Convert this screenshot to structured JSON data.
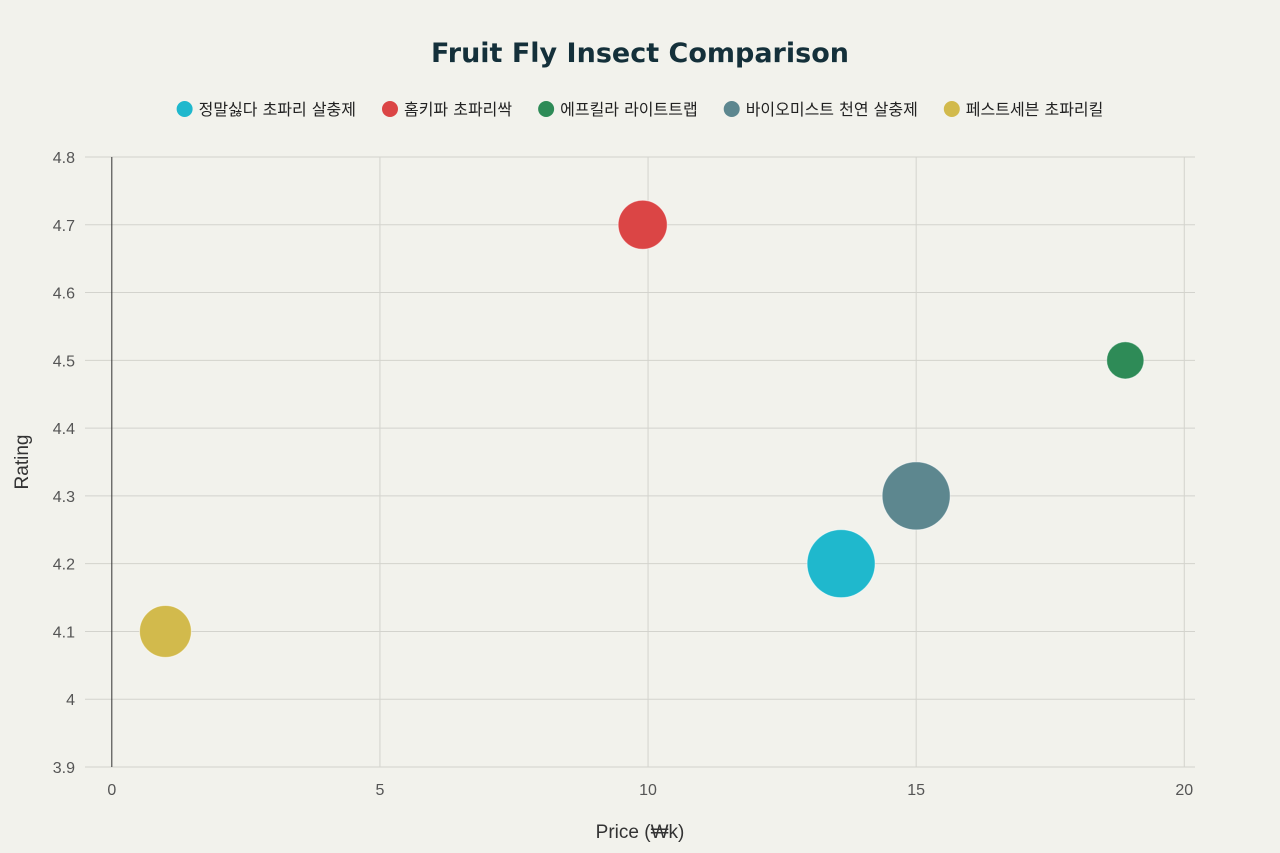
{
  "chart_data": {
    "type": "scatter",
    "title": "Fruit Fly Insect Comparison",
    "xlabel": "Price (₩k)",
    "ylabel": "Rating",
    "xlim": [
      -0.5,
      20.2
    ],
    "ylim": [
      3.9,
      4.8
    ],
    "xticks": [
      0,
      5,
      10,
      15,
      20
    ],
    "yticks": [
      3.9,
      4,
      4.1,
      4.2,
      4.3,
      4.4,
      4.5,
      4.6,
      4.7,
      4.8
    ],
    "ytick_labels": [
      "3.9",
      "4",
      "4.1",
      "4.2",
      "4.3",
      "4.4",
      "4.5",
      "4.6",
      "4.7",
      "4.8"
    ],
    "xtick_labels": [
      "0",
      "5",
      "10",
      "15",
      "20"
    ],
    "grid": true,
    "legend_position": "top-center",
    "encoding": "bubble",
    "series": [
      {
        "name": "정말싫다 초파리 살충제",
        "color": "#1fb8cd",
        "points": [
          {
            "x": 13.6,
            "y": 4.2,
            "size": 1.0
          }
        ]
      },
      {
        "name": "홈키파 초파리싹",
        "color": "#db4545",
        "points": [
          {
            "x": 9.9,
            "y": 4.7,
            "size": 0.52
          }
        ]
      },
      {
        "name": "에프킬라 라이트트랩",
        "color": "#2e8b57",
        "points": [
          {
            "x": 18.9,
            "y": 4.5,
            "size": 0.3
          }
        ]
      },
      {
        "name": "바이오미스트 천연 살충제",
        "color": "#5d878f",
        "points": [
          {
            "x": 15.0,
            "y": 4.3,
            "size": 1.0
          }
        ]
      },
      {
        "name": "페스트세븐 초파리킬",
        "color": "#d2ba4c",
        "points": [
          {
            "x": 1.0,
            "y": 4.1,
            "size": 0.58
          }
        ]
      }
    ]
  }
}
